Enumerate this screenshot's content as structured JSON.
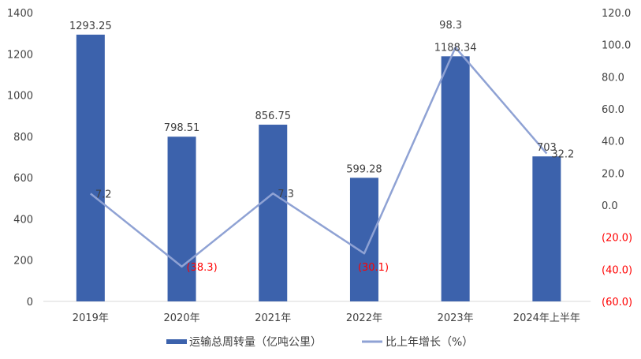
{
  "chart_data": {
    "type": "bar+line",
    "categories": [
      "2019年",
      "2020年",
      "2021年",
      "2022年",
      "2023年",
      "2024年上半年"
    ],
    "series": [
      {
        "name": "运输总周转量（亿吨公里）",
        "type": "bar",
        "axis": "left",
        "color": "#3C62AC",
        "values": [
          1293.25,
          798.51,
          856.75,
          599.28,
          1188.34,
          703
        ],
        "labels": [
          "1293.25",
          "798.51",
          "856.75",
          "599.28",
          "1188.34",
          "703"
        ]
      },
      {
        "name": "比上年增长（%）",
        "type": "line",
        "axis": "right",
        "color": "#8FA2D4",
        "values": [
          7.2,
          -38.3,
          7.3,
          -30.1,
          98.3,
          32.2
        ],
        "labels": [
          "7.2",
          "(38.3)",
          "7.3",
          "(30.1)",
          "98.3",
          "32.2"
        ]
      }
    ],
    "left_axis": {
      "ylim": [
        0,
        1400
      ],
      "ticks": [
        "0",
        "200",
        "400",
        "600",
        "800",
        "1000",
        "1200",
        "1400"
      ]
    },
    "right_axis": {
      "ylim": [
        -60,
        120
      ],
      "ticks": [
        "(60.0)",
        "(40.0)",
        "(20.0)",
        "0.0",
        "20.0",
        "40.0",
        "60.0",
        "80.0",
        "100.0",
        "120.0"
      ]
    },
    "grid": false,
    "legend_position": "bottom",
    "negative_label_color": "#FF0000",
    "text_color": "#404040"
  }
}
